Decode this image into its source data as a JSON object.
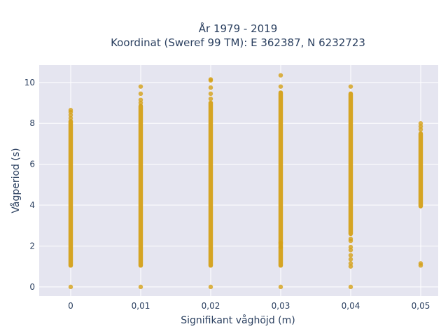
{
  "chart_data": {
    "type": "scatter",
    "title_lines": [
      "År 1979 - 2019",
      "Koordinat (Sweref 99 TM): E 362387, N 6232723"
    ],
    "xlabel": "Signifikant våghöjd (m)",
    "ylabel": "Vågperiod (s)",
    "xlim": [
      -0.0045,
      0.0525
    ],
    "ylim": [
      -0.45,
      10.85
    ],
    "x_ticks": [
      {
        "value": 0,
        "label": "0"
      },
      {
        "value": 0.01,
        "label": "0,01"
      },
      {
        "value": 0.02,
        "label": "0,02"
      },
      {
        "value": 0.03,
        "label": "0,03"
      },
      {
        "value": 0.04,
        "label": "0,04"
      },
      {
        "value": 0.05,
        "label": "0,05"
      }
    ],
    "y_ticks": [
      {
        "value": 0,
        "label": "0"
      },
      {
        "value": 2,
        "label": "2"
      },
      {
        "value": 4,
        "label": "4"
      },
      {
        "value": 6,
        "label": "6"
      },
      {
        "value": 8,
        "label": "8"
      },
      {
        "value": 10,
        "label": "10"
      }
    ],
    "grid": true,
    "marker_color": "#d4a017",
    "plot_background": "#e5e5f0",
    "columns": [
      {
        "x": 0,
        "min": 1.05,
        "max": 8.1,
        "points": [
          0,
          8.25,
          8.4,
          8.55,
          8.65
        ]
      },
      {
        "x": 0.01,
        "min": 1.05,
        "max": 8.85,
        "points": [
          0,
          9.0,
          9.15,
          9.45,
          9.8
        ]
      },
      {
        "x": 0.02,
        "min": 1.05,
        "max": 9.0,
        "points": [
          0,
          9.2,
          9.45,
          9.75,
          10.1,
          10.15
        ]
      },
      {
        "x": 0.03,
        "min": 1.05,
        "max": 9.5,
        "points": [
          0,
          9.8,
          10.35,
          1.95,
          2.15
        ]
      },
      {
        "x": 0.04,
        "min": 2.6,
        "max": 9.45,
        "points": [
          0,
          1.0,
          1.15,
          1.35,
          1.55,
          1.8,
          1.95,
          2.25,
          2.35,
          9.8
        ]
      },
      {
        "x": 0.05,
        "min": 3.95,
        "max": 7.5,
        "points": [
          1.05,
          1.15,
          7.7,
          7.85,
          8.0
        ]
      }
    ]
  }
}
